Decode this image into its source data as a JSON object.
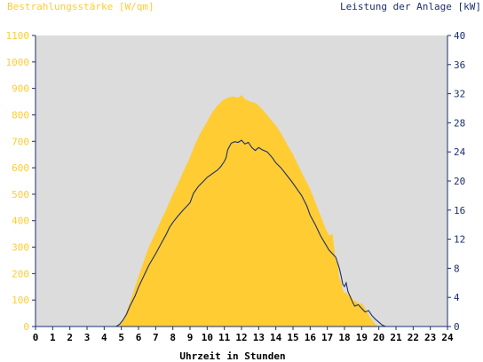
{
  "chart_data": {
    "type": "area",
    "title_left": "Bestrahlungsstärke [W/qm]",
    "title_right": "Leistung der Anlage [kW]",
    "xlabel": "Uhrzeit in Stunden",
    "x_ticks": [
      "0",
      "1",
      "2",
      "3",
      "4",
      "5",
      "6",
      "7",
      "8",
      "9",
      "10",
      "11",
      "12",
      "13",
      "14",
      "15",
      "16",
      "17",
      "18",
      "19",
      "20",
      "21",
      "22",
      "23",
      "24"
    ],
    "y_left_ticks": [
      "0",
      "100",
      "200",
      "300",
      "400",
      "500",
      "600",
      "700",
      "800",
      "900",
      "1000",
      "1100"
    ],
    "y_right_ticks": [
      "0",
      "4",
      "8",
      "12",
      "16",
      "20",
      "24",
      "28",
      "32",
      "36",
      "40"
    ],
    "xlim": [
      0,
      24
    ],
    "ylim_left": [
      0,
      1100
    ],
    "ylim_right": [
      0,
      40
    ],
    "grid": false,
    "colors": {
      "background_plot": "#dcdcdc",
      "irradiance_fill": "#ffcc33",
      "power_line": "#1a2f6e",
      "axis": "#1a2f6e"
    },
    "series": [
      {
        "axis": "left",
        "style": "area",
        "x": [
          0,
          4.5,
          4.8,
          5.0,
          5.2,
          5.5,
          5.8,
          6.0,
          6.3,
          6.6,
          7.0,
          7.3,
          7.6,
          7.8,
          8.0,
          8.3,
          8.6,
          9.0,
          9.3,
          9.6,
          10.0,
          10.3,
          10.6,
          10.9,
          11.2,
          11.5,
          11.8,
          12.0,
          12.2,
          12.5,
          12.8,
          13.0,
          13.3,
          13.6,
          14.0,
          14.3,
          14.6,
          15.0,
          15.3,
          15.6,
          16.0,
          16.3,
          16.6,
          16.9,
          17.1,
          17.3,
          17.45,
          17.6,
          17.7,
          17.8,
          17.9,
          18.0,
          18.1,
          18.2,
          18.35,
          18.5,
          18.7,
          18.9,
          19.0,
          19.2,
          19.4,
          19.6,
          19.8,
          20.0,
          20.2,
          20.4,
          20.7,
          24
        ],
        "y": [
          0,
          0,
          5,
          15,
          40,
          90,
          150,
          190,
          245,
          300,
          355,
          400,
          440,
          470,
          500,
          540,
          585,
          640,
          690,
          730,
          775,
          810,
          835,
          855,
          865,
          870,
          865,
          875,
          860,
          850,
          845,
          835,
          815,
          790,
          760,
          730,
          695,
          650,
          610,
          570,
          520,
          470,
          420,
          370,
          345,
          350,
          270,
          240,
          180,
          170,
          140,
          125,
          130,
          120,
          120,
          100,
          95,
          85,
          90,
          70,
          45,
          25,
          8,
          0,
          0,
          0,
          0,
          0
        ]
      },
      {
        "axis": "right",
        "style": "line",
        "x": [
          0,
          4.7,
          4.9,
          5.1,
          5.3,
          5.5,
          5.8,
          6.0,
          6.3,
          6.6,
          7.0,
          7.3,
          7.6,
          7.8,
          8.0,
          8.3,
          8.6,
          9.0,
          9.2,
          9.5,
          9.8,
          10.0,
          10.3,
          10.6,
          10.8,
          11.0,
          11.1,
          11.2,
          11.4,
          11.6,
          11.8,
          12.0,
          12.2,
          12.4,
          12.6,
          12.8,
          13.0,
          13.2,
          13.5,
          13.8,
          14.0,
          14.3,
          14.6,
          14.9,
          15.2,
          15.5,
          15.8,
          16.0,
          16.3,
          16.6,
          16.9,
          17.1,
          17.3,
          17.5,
          17.7,
          17.8,
          17.9,
          18.0,
          18.1,
          18.2,
          18.35,
          18.5,
          18.6,
          18.8,
          19.0,
          19.2,
          19.4,
          19.6,
          19.8,
          20.0,
          20.2,
          20.4,
          20.6,
          24
        ],
        "y": [
          0,
          0,
          0.3,
          0.9,
          1.7,
          2.8,
          4.2,
          5.4,
          6.9,
          8.4,
          10.0,
          11.3,
          12.6,
          13.6,
          14.3,
          15.2,
          16.0,
          17.0,
          18.3,
          19.3,
          20.0,
          20.5,
          21.0,
          21.5,
          22.0,
          22.7,
          23.2,
          24.3,
          25.2,
          25.4,
          25.3,
          25.6,
          25.1,
          25.3,
          24.6,
          24.2,
          24.6,
          24.3,
          24.0,
          23.2,
          22.5,
          21.8,
          20.9,
          20.0,
          19.0,
          18.0,
          16.6,
          15.3,
          14.0,
          12.5,
          11.3,
          10.5,
          10.0,
          9.5,
          8.0,
          7.0,
          5.8,
          5.5,
          6.0,
          4.8,
          4.0,
          3.2,
          2.8,
          3.0,
          2.5,
          2.0,
          2.2,
          1.5,
          1.0,
          0.6,
          0.2,
          0,
          0,
          0
        ]
      }
    ]
  }
}
